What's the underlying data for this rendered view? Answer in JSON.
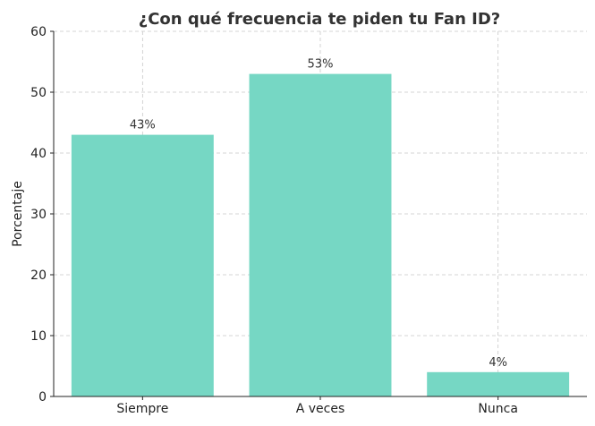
{
  "chart_data": {
    "type": "bar",
    "title": "¿Con qué frecuencia te piden tu Fan ID?",
    "xlabel": "",
    "ylabel": "Porcentaje",
    "categories": [
      "Siempre",
      "A veces",
      "Nunca"
    ],
    "values": [
      43,
      53,
      4
    ],
    "data_labels": [
      "43%",
      "53%",
      "4%"
    ],
    "ylim": [
      0,
      60
    ],
    "yticks": [
      0,
      10,
      20,
      30,
      40,
      50,
      60
    ],
    "grid": true,
    "bar_color": "#76d7c4"
  }
}
